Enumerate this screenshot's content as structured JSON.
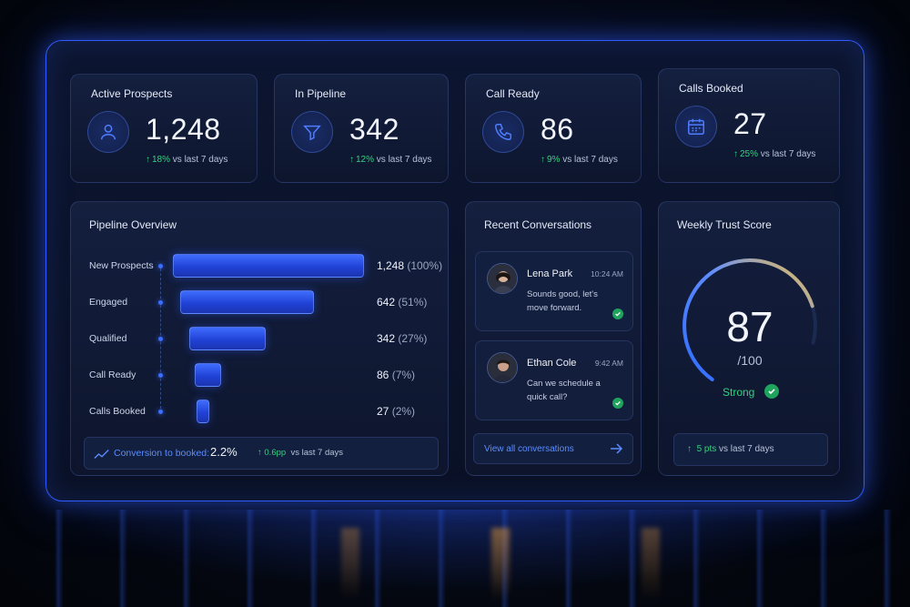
{
  "kpis": [
    {
      "title": "Active Prospects",
      "value": "1,248",
      "delta": "18%",
      "delta_suffix": "vs last 7 days",
      "icon": "user-icon"
    },
    {
      "title": "In Pipeline",
      "value": "342",
      "delta": "12%",
      "delta_suffix": "vs last 7 days",
      "icon": "funnel-icon"
    },
    {
      "title": "Call Ready",
      "value": "86",
      "delta": "9%",
      "delta_suffix": "vs last 7 days",
      "icon": "phone-icon"
    },
    {
      "title": "Calls Booked",
      "value": "27",
      "delta": "25%",
      "delta_suffix": "vs last 7 days",
      "icon": "calendar-icon"
    }
  ],
  "pipeline": {
    "title": "Pipeline Overview",
    "stages": [
      {
        "label": "New Prospects",
        "value": "1,248",
        "pct": "(100%)",
        "fraction": 1.0
      },
      {
        "label": "Engaged",
        "value": "642",
        "pct": "(51%)",
        "fraction": 0.51
      },
      {
        "label": "Qualified",
        "value": "342",
        "pct": "(27%)",
        "fraction": 0.27
      },
      {
        "label": "Call Ready",
        "value": "86",
        "pct": "(7%)",
        "fraction": 0.07
      },
      {
        "label": "Calls Booked",
        "value": "27",
        "pct": "(2%)",
        "fraction": 0.02
      }
    ],
    "conversion_label": "Conversion to booked:",
    "conversion_value": "2.2%",
    "conversion_delta": "0.6pp",
    "conversion_suffix": "vs last 7 days"
  },
  "conversations": {
    "title": "Recent Conversations",
    "items": [
      {
        "name": "Lena Park",
        "time": "10:24 AM",
        "message": "Sounds good, let's move forward."
      },
      {
        "name": "Ethan Cole",
        "time": "9:42 AM",
        "message": "Can we schedule a quick call?"
      }
    ],
    "view_all": "View all conversations"
  },
  "trust": {
    "title": "Weekly Trust Score",
    "score": "87",
    "out_of": "/100",
    "score_fraction": 0.87,
    "status": "Strong",
    "delta": "5 pts",
    "delta_suffix": "vs last 7 days"
  },
  "colors": {
    "accent": "#3c6dff",
    "positive": "#35d07f",
    "gauge_start": "#2f6bff",
    "gauge_end": "#f2c14e"
  }
}
